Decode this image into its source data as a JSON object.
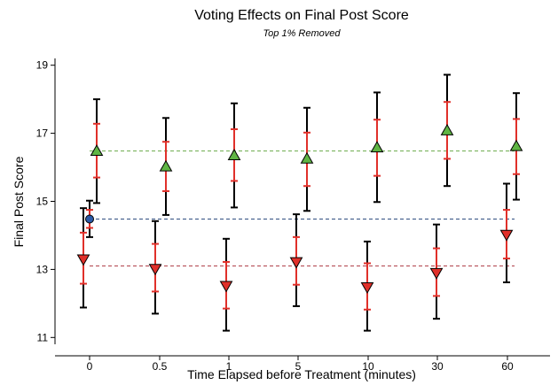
{
  "chart_data": {
    "type": "scatter",
    "title": "Voting Effects on Final Post Score",
    "subtitle": "Top 1% Removed",
    "xlabel": "Time Elapsed before Treatment (minutes)",
    "ylabel": "Final Post Score",
    "categories": [
      "0",
      "0.5",
      "1",
      "5",
      "10",
      "30",
      "60"
    ],
    "ylim": [
      10.8,
      19.2
    ],
    "yticks": [
      "11",
      "13",
      "15",
      "17",
      "19"
    ],
    "grid": false,
    "legend": "none",
    "control": {
      "value": 14.48,
      "ci_outer": [
        13.95,
        15.02
      ],
      "ci_inner": [
        14.22,
        14.75
      ],
      "color": "#2b5aa8",
      "reference_line_color": "#2f4d80"
    },
    "series": [
      {
        "marker": "triangle-up",
        "color": "#5fb544",
        "reference_line_color": "#6aaa4a",
        "reference": 16.48,
        "values": [
          16.48,
          16.02,
          16.35,
          16.25,
          16.58,
          17.08,
          16.62
        ],
        "ci_outer": [
          [
            14.95,
            18.0
          ],
          [
            14.6,
            17.45
          ],
          [
            14.82,
            17.88
          ],
          [
            14.72,
            17.75
          ],
          [
            14.98,
            18.2
          ],
          [
            15.45,
            18.72
          ],
          [
            15.05,
            18.18
          ]
        ],
        "ci_inner": [
          [
            15.7,
            17.28
          ],
          [
            15.3,
            16.75
          ],
          [
            15.6,
            17.12
          ],
          [
            15.45,
            17.02
          ],
          [
            15.75,
            17.4
          ],
          [
            16.25,
            17.92
          ],
          [
            15.8,
            17.42
          ]
        ]
      },
      {
        "marker": "triangle-down",
        "color": "#e0302a",
        "reference_line_color": "#b0404a",
        "reference": 13.1,
        "values": [
          13.3,
          13.02,
          12.52,
          13.22,
          12.48,
          12.9,
          14.02
        ],
        "ci_outer": [
          [
            11.88,
            14.8
          ],
          [
            11.7,
            14.42
          ],
          [
            11.2,
            13.9
          ],
          [
            11.92,
            14.62
          ],
          [
            11.2,
            13.82
          ],
          [
            11.55,
            14.32
          ],
          [
            12.62,
            15.52
          ]
        ],
        "ci_inner": [
          [
            12.58,
            14.08
          ],
          [
            12.35,
            13.75
          ],
          [
            11.85,
            13.22
          ],
          [
            12.55,
            13.95
          ],
          [
            11.82,
            13.18
          ],
          [
            12.22,
            13.62
          ],
          [
            13.32,
            14.75
          ]
        ]
      }
    ]
  }
}
